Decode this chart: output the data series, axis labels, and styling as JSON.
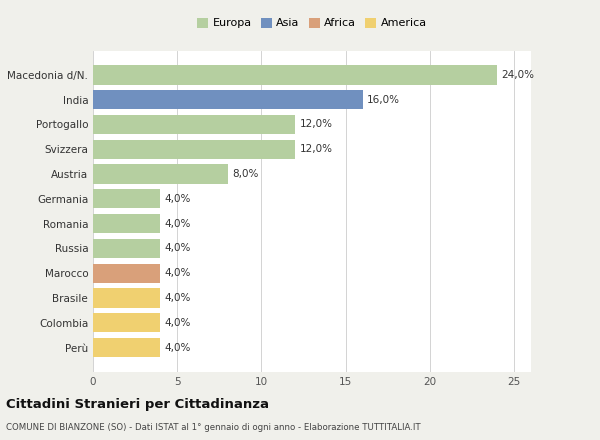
{
  "countries": [
    "Macedonia d/N.",
    "India",
    "Portogallo",
    "Svizzera",
    "Austria",
    "Germania",
    "Romania",
    "Russia",
    "Marocco",
    "Brasile",
    "Colombia",
    "Perù"
  ],
  "values": [
    24.0,
    16.0,
    12.0,
    12.0,
    8.0,
    4.0,
    4.0,
    4.0,
    4.0,
    4.0,
    4.0,
    4.0
  ],
  "colors": [
    "#b5cfa0",
    "#7090bf",
    "#b5cfa0",
    "#b5cfa0",
    "#b5cfa0",
    "#b5cfa0",
    "#b5cfa0",
    "#b5cfa0",
    "#d9a07a",
    "#f0d070",
    "#f0d070",
    "#f0d070"
  ],
  "labels": [
    "24,0%",
    "16,0%",
    "12,0%",
    "12,0%",
    "8,0%",
    "4,0%",
    "4,0%",
    "4,0%",
    "4,0%",
    "4,0%",
    "4,0%",
    "4,0%"
  ],
  "legend_labels": [
    "Europa",
    "Asia",
    "Africa",
    "America"
  ],
  "legend_colors": [
    "#b5cfa0",
    "#7090bf",
    "#d9a07a",
    "#f0d070"
  ],
  "title": "Cittadini Stranieri per Cittadinanza",
  "subtitle": "COMUNE DI BIANZONE (SO) - Dati ISTAT al 1° gennaio di ogni anno - Elaborazione TUTTITALIA.IT",
  "xlim": [
    0,
    26
  ],
  "xticks": [
    0,
    5,
    10,
    15,
    20,
    25
  ],
  "bg_color": "#f0f0eb",
  "bar_bg_color": "#ffffff"
}
